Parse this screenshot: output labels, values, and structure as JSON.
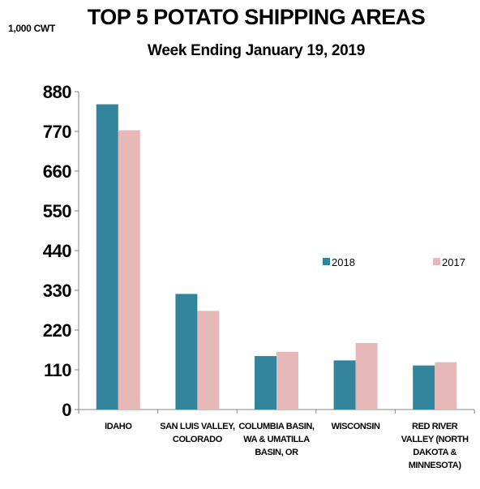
{
  "chart_data": {
    "type": "bar",
    "title": "TOP 5 POTATO SHIPPING AREAS",
    "subtitle": "Week Ending January 19, 2019",
    "unit_label": "1,000 CWT",
    "categories": [
      [
        "IDAHO"
      ],
      [
        "SAN LUIS VALLEY,",
        "COLORADO"
      ],
      [
        "COLUMBIA BASIN,",
        "WA & UMATILLA",
        "BASIN, OR"
      ],
      [
        "WISCONSIN"
      ],
      [
        "RED RIVER",
        "VALLEY (NORTH",
        "DAKOTA &",
        "MINNESOTA)"
      ]
    ],
    "series": [
      {
        "name": "2018",
        "color": "#31849b",
        "values": [
          845,
          320,
          148,
          136,
          122
        ]
      },
      {
        "name": "2017",
        "color": "#e6b8b7",
        "values": [
          773,
          273,
          160,
          184,
          131
        ]
      }
    ],
    "yticks": [
      0,
      110,
      220,
      330,
      440,
      550,
      660,
      770,
      880
    ],
    "ylim": [
      0,
      880
    ],
    "grid": false,
    "legend": "right-middle"
  }
}
